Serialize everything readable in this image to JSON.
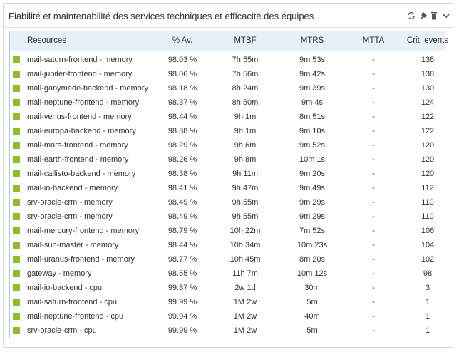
{
  "widget": {
    "title": "Fiabilité et maintenabilité des services techniques et efficacité des équipes",
    "table": {
      "headers": [
        "Resources",
        "% Av.",
        "MTBF",
        "MTRS",
        "MTTA",
        "Crit. events"
      ],
      "rows": [
        [
          "mail-saturn-frontend - memory",
          "98.03 %",
          "7h 55m",
          "9m 53s",
          "-",
          138
        ],
        [
          "mail-jupiter-frontend - memory",
          "98.06 %",
          "7h 56m",
          "9m 42s",
          "-",
          138
        ],
        [
          "mail-ganymede-backend - memory",
          "98.18 %",
          "8h 24m",
          "9m 39s",
          "-",
          130
        ],
        [
          "mail-neptune-frontend - memory",
          "98.37 %",
          "8h 50m",
          "9m 4s",
          "-",
          124
        ],
        [
          "mail-venus-frontend - memory",
          "98.44 %",
          "9h 1m",
          "8m 51s",
          "-",
          122
        ],
        [
          "mail-europa-backend - memory",
          "98.38 %",
          "9h 1m",
          "9m 10s",
          "-",
          122
        ],
        [
          "mail-mars-frontend - memory",
          "98.29 %",
          "9h 6m",
          "9m 52s",
          "-",
          120
        ],
        [
          "mail-earth-frontend - memory",
          "98.26 %",
          "9h 8m",
          "10m 1s",
          "-",
          120
        ],
        [
          "mail-callisto-backend - memory",
          "98.38 %",
          "9h 11m",
          "9m 20s",
          "-",
          120
        ],
        [
          "mail-io-backend - memory",
          "98.41 %",
          "9h 47m",
          "9m 49s",
          "-",
          112
        ],
        [
          "srv-oracle-crm - memory",
          "98.49 %",
          "9h 55m",
          "9m 29s",
          "-",
          110
        ],
        [
          "srv-oracle-crm - memory",
          "98.49 %",
          "9h 55m",
          "9m 29s",
          "-",
          110
        ],
        [
          "mail-mercury-frontend - memory",
          "98.79 %",
          "10h 22m",
          "7m 52s",
          "-",
          106
        ],
        [
          "mail-sun-master - memory",
          "98.44 %",
          "10h 34m",
          "10m 23s",
          "-",
          104
        ],
        [
          "mail-uranus-frontend - memory",
          "98.77 %",
          "10h 45m",
          "8m 20s",
          "-",
          102
        ],
        [
          "gateway - memory",
          "98.55 %",
          "11h 7m",
          "10m 12s",
          "-",
          98
        ],
        [
          "mail-io-backend - cpu",
          "99.87 %",
          "2w 1d",
          "30m",
          "-",
          3
        ],
        [
          "mail-saturn-frontend - cpu",
          "99.99 %",
          "1M 2w",
          "5m",
          "-",
          1
        ],
        [
          "mail-neptune-frontend - cpu",
          "99.94 %",
          "1M 2w",
          "40m",
          "-",
          1
        ],
        [
          "srv-oracle-crm - cpu",
          "99.99 %",
          "1M 2w",
          "5m",
          "-",
          1
        ]
      ]
    }
  }
}
